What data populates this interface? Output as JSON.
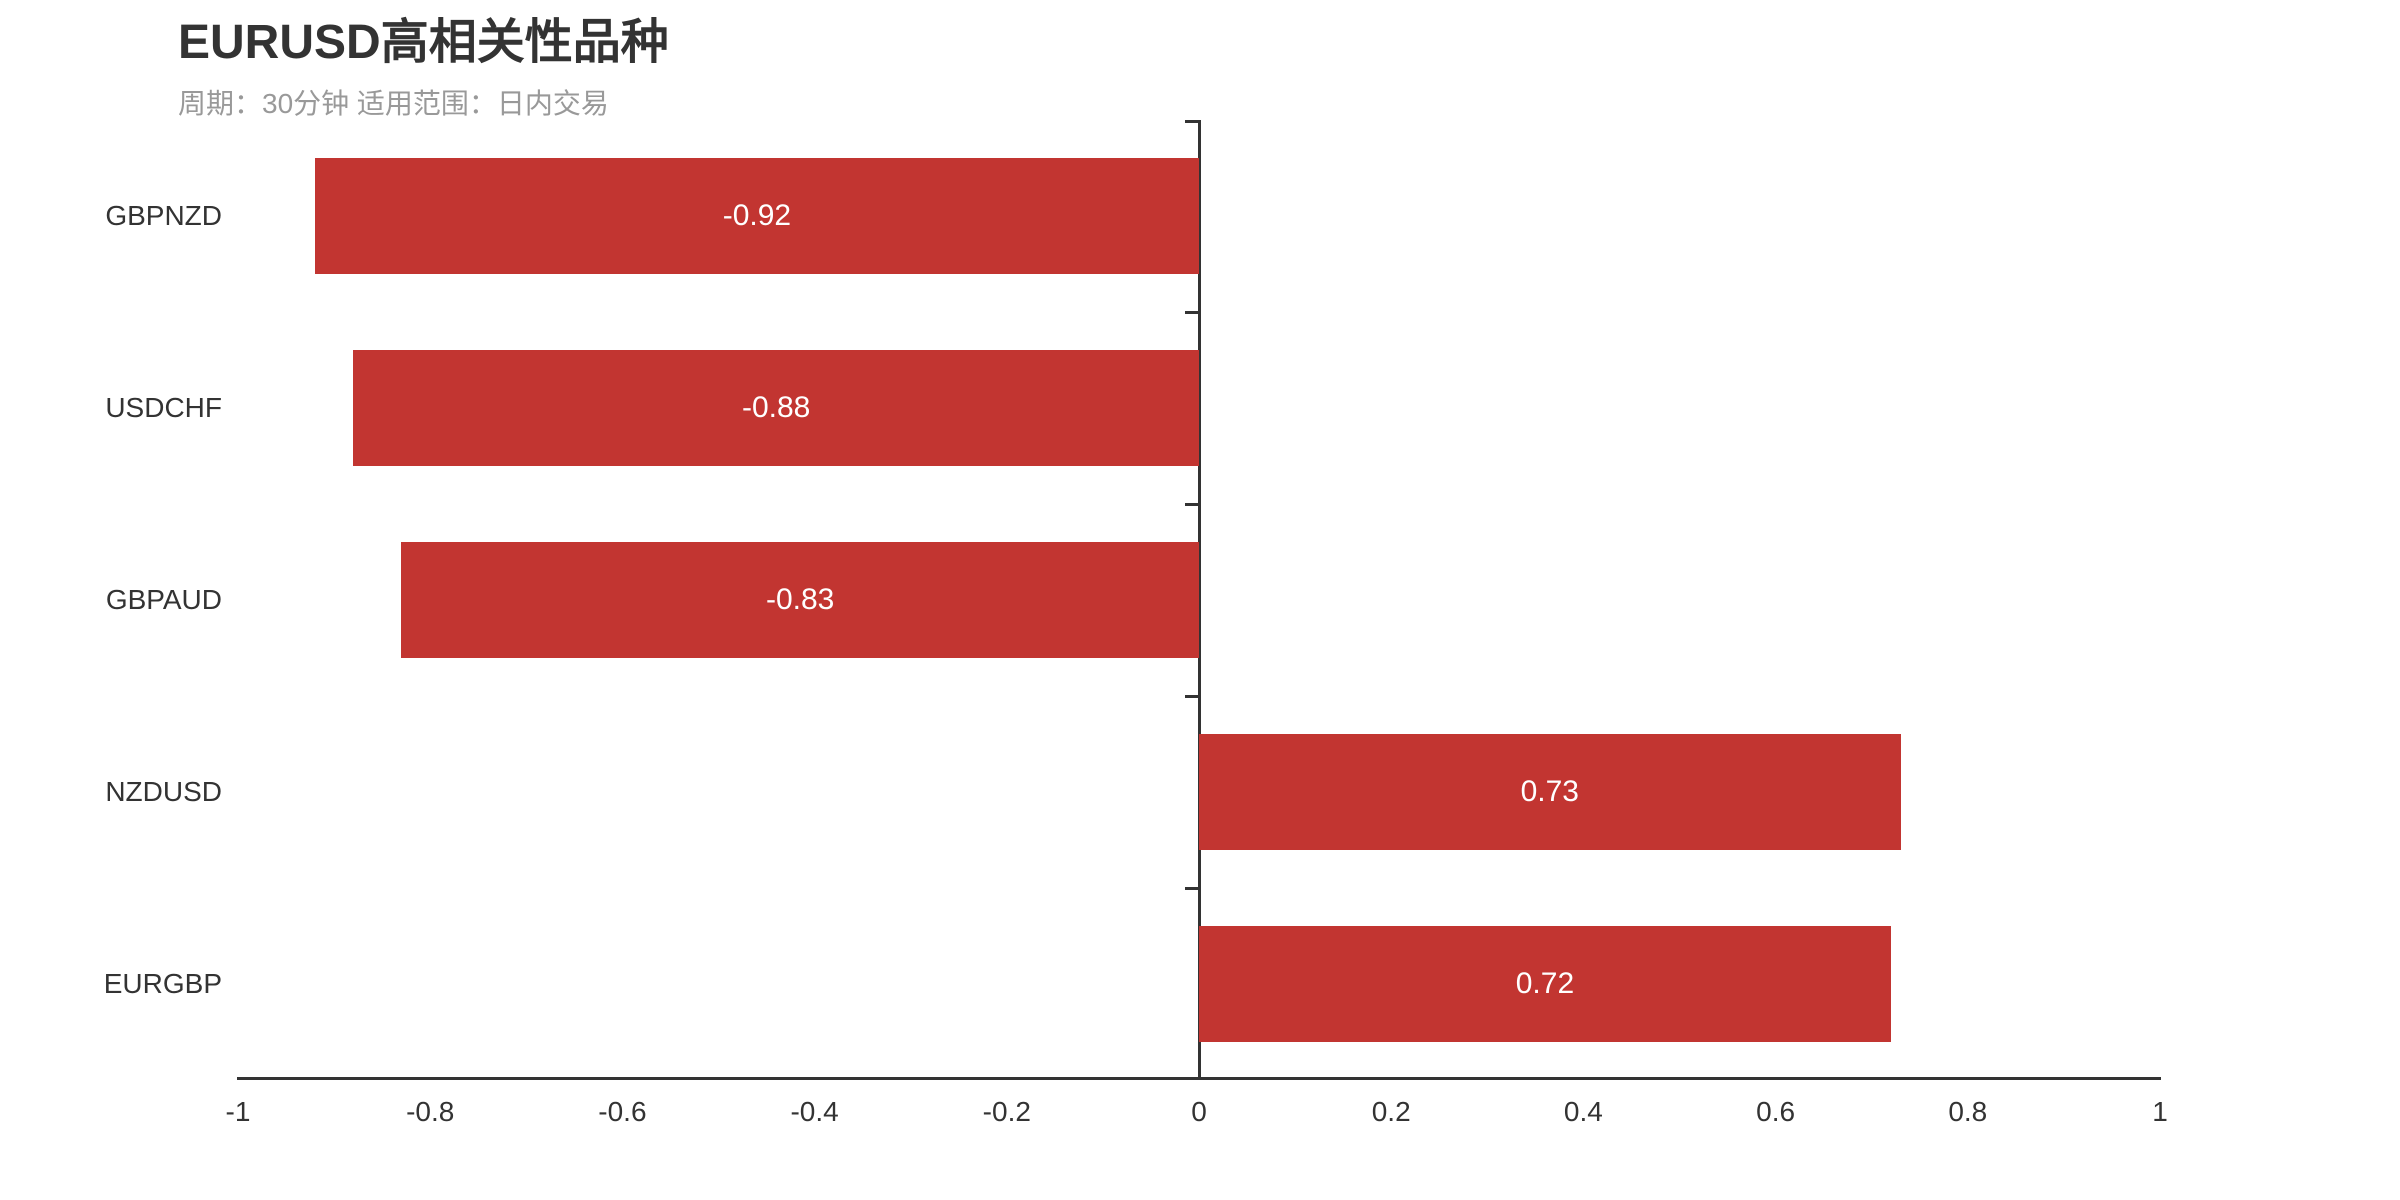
{
  "chart_data": {
    "type": "bar",
    "orientation": "horizontal",
    "title": "EURUSD高相关性品种",
    "subtitle": "周期：30分钟 适用范围：日内交易",
    "categories": [
      "GBPNZD",
      "USDCHF",
      "GBPAUD",
      "NZDUSD",
      "EURGBP"
    ],
    "values": [
      -0.92,
      -0.88,
      -0.83,
      0.73,
      0.72
    ],
    "value_labels": [
      "-0.92",
      "-0.88",
      "-0.83",
      "0.73",
      "0.72"
    ],
    "xlim": [
      -1,
      1
    ],
    "xticks": [
      -1,
      -0.8,
      -0.6,
      -0.4,
      -0.2,
      0,
      0.2,
      0.4,
      0.6,
      0.8,
      1
    ],
    "xtick_labels": [
      "-1",
      "-0.8",
      "-0.6",
      "-0.4",
      "-0.2",
      "0",
      "0.2",
      "0.4",
      "0.6",
      "0.8",
      "1"
    ],
    "grid": false,
    "legend": false,
    "bar_color": "#c23531",
    "bar_label_color": "#ffffff",
    "axis_color": "#333333",
    "title_color": "#333333",
    "subtitle_color": "#999999"
  }
}
